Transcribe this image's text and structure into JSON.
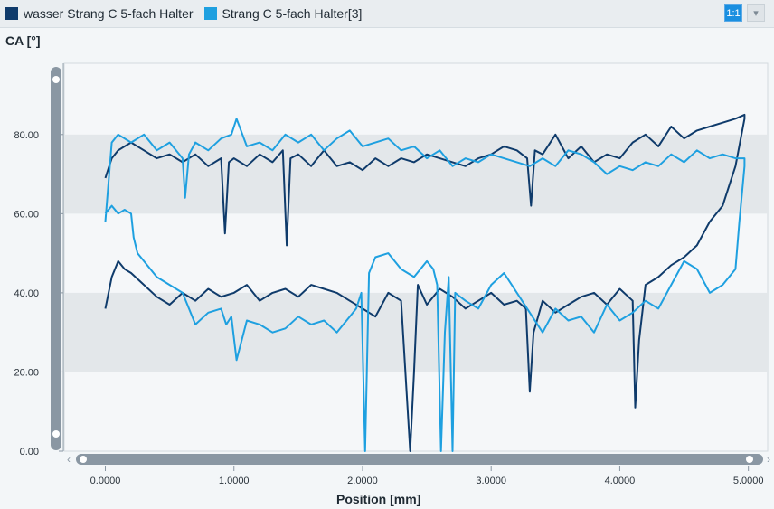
{
  "legend": {
    "series1": "wasser Strang C 5-fach Halter",
    "series2": "Strang C 5-fach Halter[3]"
  },
  "controls": {
    "one_to_one_label": "1:1",
    "dropdown_glyph": "▾"
  },
  "colors": {
    "series1": "#0f3b6b",
    "series2": "#1ea0e0",
    "band": "#e3e7ea",
    "plot_bg": "#f5f7f9",
    "scrollbar": "#8a97a3"
  },
  "chart_data": {
    "type": "line",
    "ylabel": "CA [°]",
    "xlabel": "Position [mm]",
    "xlim": [
      -0.32,
      5.15
    ],
    "ylim": [
      0,
      98
    ],
    "x_ticks": [
      "0.0000",
      "1.0000",
      "2.0000",
      "3.0000",
      "4.0000",
      "5.0000"
    ],
    "y_ticks": [
      "0.00",
      "20.00",
      "40.00",
      "60.00",
      "80.00"
    ],
    "grid": "alternating horizontal bands",
    "legend_position": "top",
    "series": [
      {
        "name": "wasser Strang C 5-fach Halter",
        "color": "#0f3b6b",
        "x": [
          0.0,
          0.05,
          0.1,
          0.15,
          0.2,
          0.3,
          0.4,
          0.5,
          0.6,
          0.7,
          0.8,
          0.9,
          0.93,
          0.96,
          1.0,
          1.1,
          1.2,
          1.3,
          1.38,
          1.41,
          1.44,
          1.5,
          1.6,
          1.7,
          1.8,
          1.9,
          2.0,
          2.1,
          2.2,
          2.3,
          2.4,
          2.5,
          2.6,
          2.7,
          2.8,
          2.9,
          3.0,
          3.1,
          3.2,
          3.28,
          3.31,
          3.34,
          3.4,
          3.5,
          3.6,
          3.7,
          3.8,
          3.9,
          4.0,
          4.1,
          4.2,
          4.3,
          4.4,
          4.5,
          4.6,
          4.7,
          4.8,
          4.9,
          4.97,
          4.97,
          4.9,
          4.8,
          4.7,
          4.6,
          4.5,
          4.4,
          4.3,
          4.2,
          4.15,
          4.12,
          4.1,
          4.0,
          3.9,
          3.8,
          3.7,
          3.6,
          3.5,
          3.4,
          3.33,
          3.3,
          3.27,
          3.2,
          3.1,
          3.0,
          2.9,
          2.8,
          2.7,
          2.6,
          2.5,
          2.43,
          2.4,
          2.37,
          2.3,
          2.2,
          2.1,
          2.0,
          1.9,
          1.8,
          1.7,
          1.6,
          1.5,
          1.4,
          1.3,
          1.2,
          1.1,
          1.0,
          0.9,
          0.8,
          0.7,
          0.6,
          0.5,
          0.4,
          0.3,
          0.2,
          0.15,
          0.1,
          0.05,
          0.0
        ],
        "y": [
          69,
          74,
          76,
          77,
          78,
          76,
          74,
          75,
          73,
          75,
          72,
          74,
          55,
          73,
          74,
          72,
          75,
          73,
          76,
          52,
          74,
          75,
          72,
          76,
          72,
          73,
          71,
          74,
          72,
          74,
          73,
          75,
          74,
          73,
          72,
          74,
          75,
          77,
          76,
          74,
          62,
          76,
          75,
          80,
          74,
          77,
          73,
          75,
          74,
          78,
          80,
          77,
          82,
          79,
          81,
          82,
          83,
          84,
          85,
          84,
          72,
          62,
          58,
          52,
          49,
          47,
          44,
          42,
          28,
          11,
          38,
          41,
          37,
          40,
          39,
          37,
          35,
          38,
          30,
          15,
          36,
          38,
          37,
          40,
          38,
          36,
          39,
          41,
          37,
          42,
          20,
          0,
          38,
          40,
          34,
          36,
          38,
          40,
          41,
          42,
          39,
          41,
          40,
          38,
          42,
          40,
          39,
          41,
          38,
          40,
          37,
          39,
          42,
          45,
          46,
          48,
          44,
          36
        ]
      },
      {
        "name": "Strang C 5-fach Halter[3]",
        "color": "#1ea0e0",
        "x": [
          0.0,
          0.05,
          0.1,
          0.2,
          0.3,
          0.4,
          0.5,
          0.6,
          0.62,
          0.65,
          0.7,
          0.8,
          0.9,
          0.98,
          1.02,
          1.1,
          1.2,
          1.3,
          1.4,
          1.5,
          1.6,
          1.7,
          1.8,
          1.9,
          2.0,
          2.1,
          2.2,
          2.3,
          2.4,
          2.5,
          2.6,
          2.7,
          2.8,
          2.9,
          3.0,
          3.1,
          3.2,
          3.3,
          3.4,
          3.5,
          3.6,
          3.7,
          3.8,
          3.9,
          4.0,
          4.1,
          4.2,
          4.3,
          4.4,
          4.5,
          4.6,
          4.7,
          4.8,
          4.9,
          4.97,
          4.97,
          4.93,
          4.9,
          4.85,
          4.8,
          4.7,
          4.6,
          4.5,
          4.4,
          4.3,
          4.2,
          4.1,
          4.0,
          3.9,
          3.8,
          3.7,
          3.6,
          3.5,
          3.4,
          3.3,
          3.2,
          3.1,
          3.0,
          2.9,
          2.8,
          2.72,
          2.7,
          2.67,
          2.64,
          2.61,
          2.58,
          2.55,
          2.5,
          2.4,
          2.3,
          2.2,
          2.1,
          2.05,
          2.02,
          1.99,
          1.95,
          1.9,
          1.8,
          1.7,
          1.6,
          1.5,
          1.4,
          1.3,
          1.2,
          1.1,
          1.02,
          0.98,
          0.94,
          0.9,
          0.8,
          0.7,
          0.65,
          0.6,
          0.5,
          0.4,
          0.3,
          0.25,
          0.22,
          0.2,
          0.15,
          0.1,
          0.05,
          0.0
        ],
        "y": [
          58,
          78,
          80,
          78,
          80,
          76,
          78,
          74,
          64,
          75,
          78,
          76,
          79,
          80,
          84,
          77,
          78,
          76,
          80,
          78,
          80,
          76,
          79,
          81,
          77,
          78,
          79,
          76,
          77,
          74,
          76,
          72,
          74,
          73,
          75,
          74,
          73,
          72,
          74,
          72,
          76,
          75,
          73,
          70,
          72,
          71,
          73,
          72,
          75,
          73,
          76,
          74,
          75,
          74,
          74,
          72,
          58,
          46,
          44,
          42,
          40,
          46,
          48,
          42,
          36,
          38,
          35,
          33,
          37,
          30,
          34,
          33,
          36,
          30,
          35,
          40,
          45,
          42,
          36,
          38,
          40,
          0,
          44,
          30,
          0,
          42,
          46,
          48,
          44,
          46,
          50,
          49,
          45,
          0,
          40,
          36,
          34,
          30,
          33,
          32,
          34,
          31,
          30,
          32,
          33,
          23,
          34,
          32,
          36,
          35,
          32,
          36,
          40,
          42,
          44,
          48,
          50,
          54,
          60,
          61,
          60,
          62,
          60
        ]
      }
    ]
  }
}
